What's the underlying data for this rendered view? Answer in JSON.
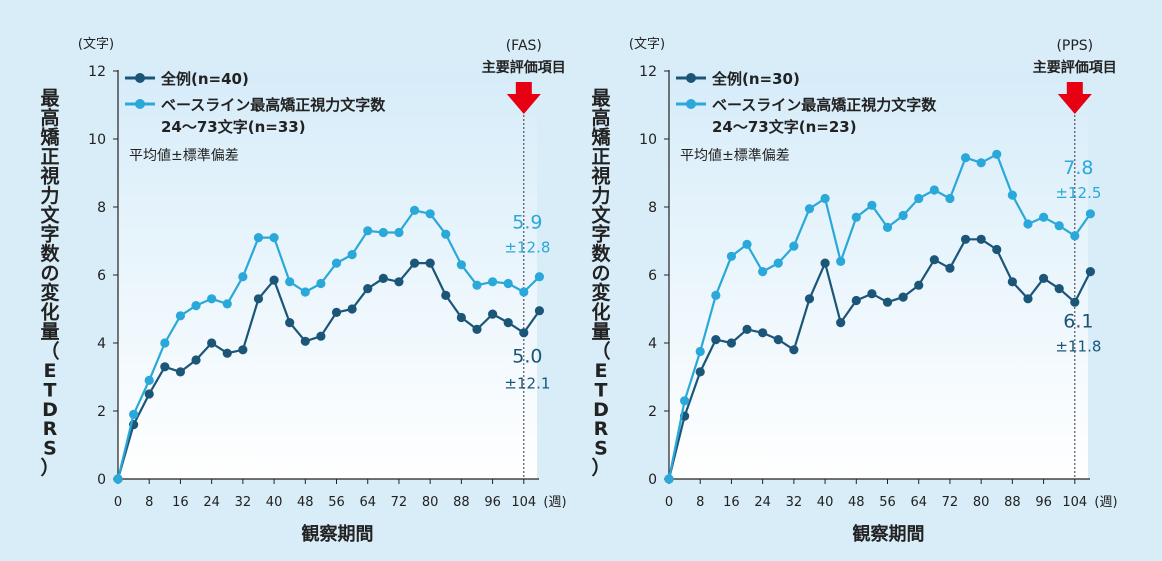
{
  "colors": {
    "background": "#d9edf8",
    "plot_fill_top": "#d6ecf9",
    "plot_fill_bottom": "#ffffff",
    "series_all": "#1b5679",
    "series_baseline": "#2aa8d9",
    "arrow": "#e60012",
    "axis": "#222222"
  },
  "chart_data": [
    {
      "type": "line",
      "unit_label": "(文字)",
      "ylabel": "最高矯正視力文字数の変化量（ETDRS）",
      "xlabel": "観察期間",
      "x_unit": "(週)",
      "ylim": [
        0,
        12
      ],
      "yticks": [
        0,
        2,
        4,
        6,
        8,
        10,
        12
      ],
      "xticks": [
        0,
        8,
        16,
        24,
        32,
        40,
        48,
        56,
        64,
        72,
        80,
        88,
        96,
        104
      ],
      "xlim": [
        0,
        108
      ],
      "grid": false,
      "legend_position": "top-left",
      "note": "平均値±標準偏差",
      "endpoint": {
        "set": "(FAS)",
        "label": "主要評価項目",
        "x": 104
      },
      "series": [
        {
          "name": "全例(n=40)",
          "name_line2": "",
          "color_key": "series_all",
          "x": [
            0,
            4,
            8,
            12,
            16,
            20,
            24,
            28,
            32,
            36,
            40,
            44,
            48,
            52,
            56,
            60,
            64,
            68,
            72,
            76,
            80,
            84,
            88,
            92,
            96,
            100,
            104,
            108
          ],
          "y": [
            0,
            1.6,
            2.5,
            3.3,
            3.15,
            3.5,
            4.0,
            3.7,
            3.8,
            5.3,
            5.85,
            4.6,
            4.05,
            4.2,
            4.9,
            5.0,
            5.6,
            5.9,
            5.8,
            6.35,
            6.35,
            5.4,
            4.75,
            4.4,
            4.85,
            4.6,
            4.3,
            4.95
          ],
          "end_value": "5.0",
          "end_sd": "±12.1"
        },
        {
          "name": "ベースライン最高矯正視力文字数",
          "name_line2": "24〜73文字(n=33)",
          "color_key": "series_baseline",
          "x": [
            0,
            4,
            8,
            12,
            16,
            20,
            24,
            28,
            32,
            36,
            40,
            44,
            48,
            52,
            56,
            60,
            64,
            68,
            72,
            76,
            80,
            84,
            88,
            92,
            96,
            100,
            104,
            108
          ],
          "y": [
            0,
            1.9,
            2.9,
            4.0,
            4.8,
            5.1,
            5.3,
            5.15,
            5.95,
            7.1,
            7.1,
            5.8,
            5.5,
            5.75,
            6.35,
            6.6,
            7.3,
            7.25,
            7.25,
            7.9,
            7.8,
            7.2,
            6.3,
            5.7,
            5.8,
            5.75,
            5.5,
            5.95
          ],
          "end_value": "5.9",
          "end_sd": "±12.8"
        }
      ]
    },
    {
      "type": "line",
      "unit_label": "(文字)",
      "ylabel": "最高矯正視力文字数の変化量（ETDRS）",
      "xlabel": "観察期間",
      "x_unit": "(週)",
      "ylim": [
        0,
        12
      ],
      "yticks": [
        0,
        2,
        4,
        6,
        8,
        10,
        12
      ],
      "xticks": [
        0,
        8,
        16,
        24,
        32,
        40,
        48,
        56,
        64,
        72,
        80,
        88,
        96,
        104
      ],
      "xlim": [
        0,
        108
      ],
      "grid": false,
      "legend_position": "top-left",
      "note": "平均値±標準偏差",
      "endpoint": {
        "set": "(PPS)",
        "label": "主要評価項目",
        "x": 104
      },
      "series": [
        {
          "name": "全例(n=30)",
          "name_line2": "",
          "color_key": "series_all",
          "x": [
            0,
            4,
            8,
            12,
            16,
            20,
            24,
            28,
            32,
            36,
            40,
            44,
            48,
            52,
            56,
            60,
            64,
            68,
            72,
            76,
            80,
            84,
            88,
            92,
            96,
            100,
            104,
            108
          ],
          "y": [
            0,
            1.85,
            3.15,
            4.1,
            4.0,
            4.4,
            4.3,
            4.1,
            3.8,
            5.3,
            6.35,
            4.6,
            5.25,
            5.45,
            5.2,
            5.35,
            5.7,
            6.45,
            6.2,
            7.05,
            7.05,
            6.75,
            5.8,
            5.3,
            5.9,
            5.6,
            5.2,
            6.1
          ],
          "end_value": "6.1",
          "end_sd": "±11.8"
        },
        {
          "name": "ベースライン最高矯正視力文字数",
          "name_line2": "24〜73文字(n=23)",
          "color_key": "series_baseline",
          "x": [
            0,
            4,
            8,
            12,
            16,
            20,
            24,
            28,
            32,
            36,
            40,
            44,
            48,
            52,
            56,
            60,
            64,
            68,
            72,
            76,
            80,
            84,
            88,
            92,
            96,
            100,
            104,
            108
          ],
          "y": [
            0,
            2.3,
            3.75,
            5.4,
            6.55,
            6.9,
            6.1,
            6.35,
            6.85,
            7.95,
            8.25,
            6.4,
            7.7,
            8.05,
            7.4,
            7.75,
            8.25,
            8.5,
            8.25,
            9.45,
            9.3,
            9.55,
            8.35,
            7.5,
            7.7,
            7.45,
            7.15,
            7.8
          ],
          "end_value": "7.8",
          "end_sd": "±12.5"
        }
      ]
    }
  ]
}
